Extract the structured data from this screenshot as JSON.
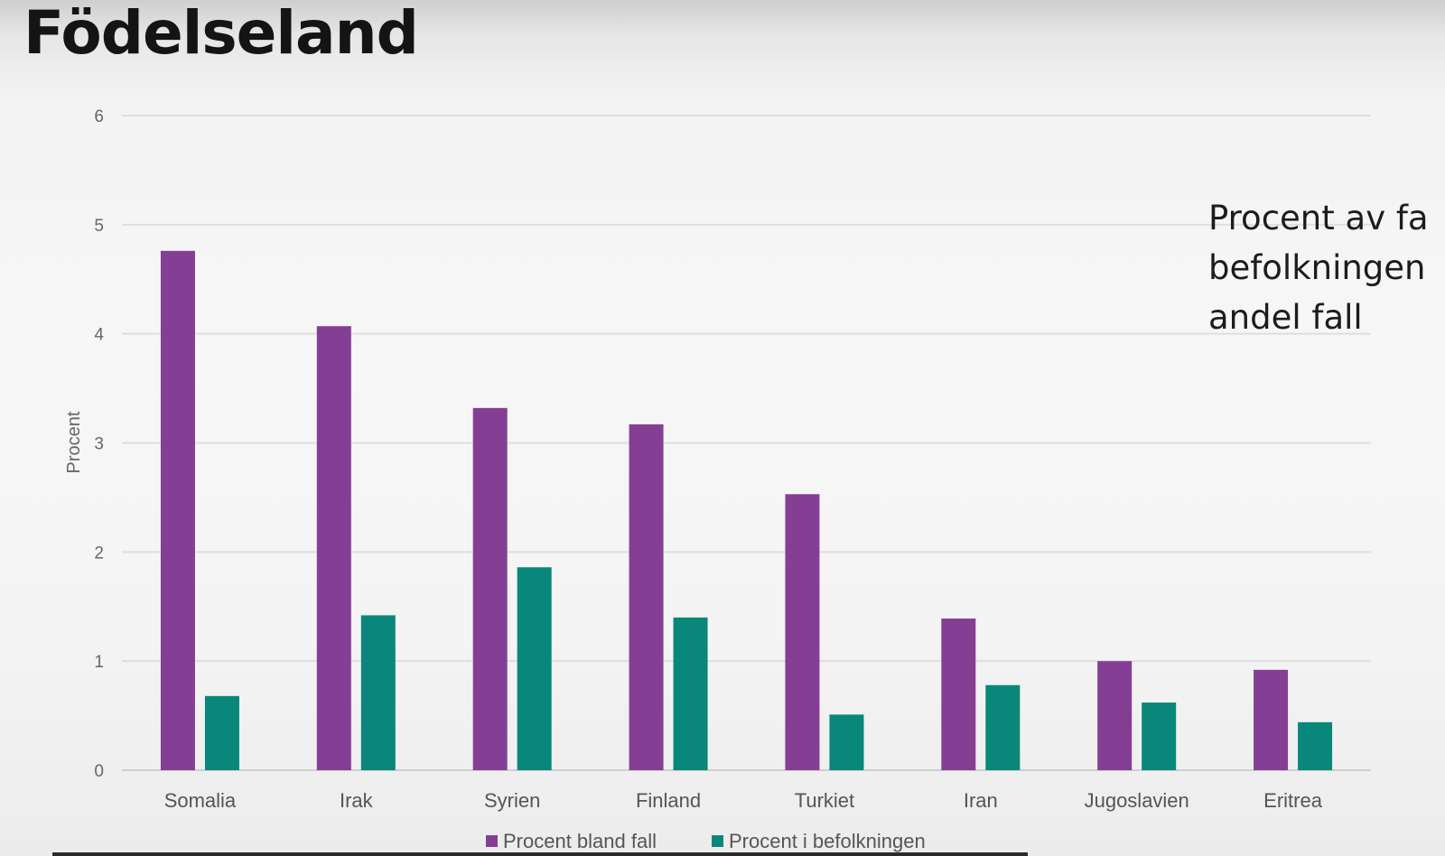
{
  "page": {
    "title": "Födelseland"
  },
  "side_note": {
    "lines": [
      "Procent av fa",
      "befolkningen",
      "andel fall"
    ]
  },
  "chart_data": {
    "type": "bar",
    "categories": [
      "Somalia",
      "Irak",
      "Syrien",
      "Finland",
      "Turkiet",
      "Iran",
      "Jugoslavien",
      "Eritrea"
    ],
    "series": [
      {
        "name": "Procent bland fall",
        "color": "#843f94",
        "values": [
          4.76,
          4.07,
          3.32,
          3.17,
          2.53,
          1.39,
          1.0,
          0.92
        ]
      },
      {
        "name": "Procent i befolkningen",
        "color": "#09877a",
        "values": [
          0.68,
          1.42,
          1.86,
          1.4,
          0.51,
          0.78,
          0.62,
          0.44
        ]
      }
    ],
    "title": "",
    "xlabel": "",
    "ylabel": "Procent",
    "ylim": [
      0,
      6
    ],
    "yticks": [
      0,
      1,
      2,
      3,
      4,
      5,
      6
    ],
    "grid": true,
    "legend_position": "bottom"
  }
}
